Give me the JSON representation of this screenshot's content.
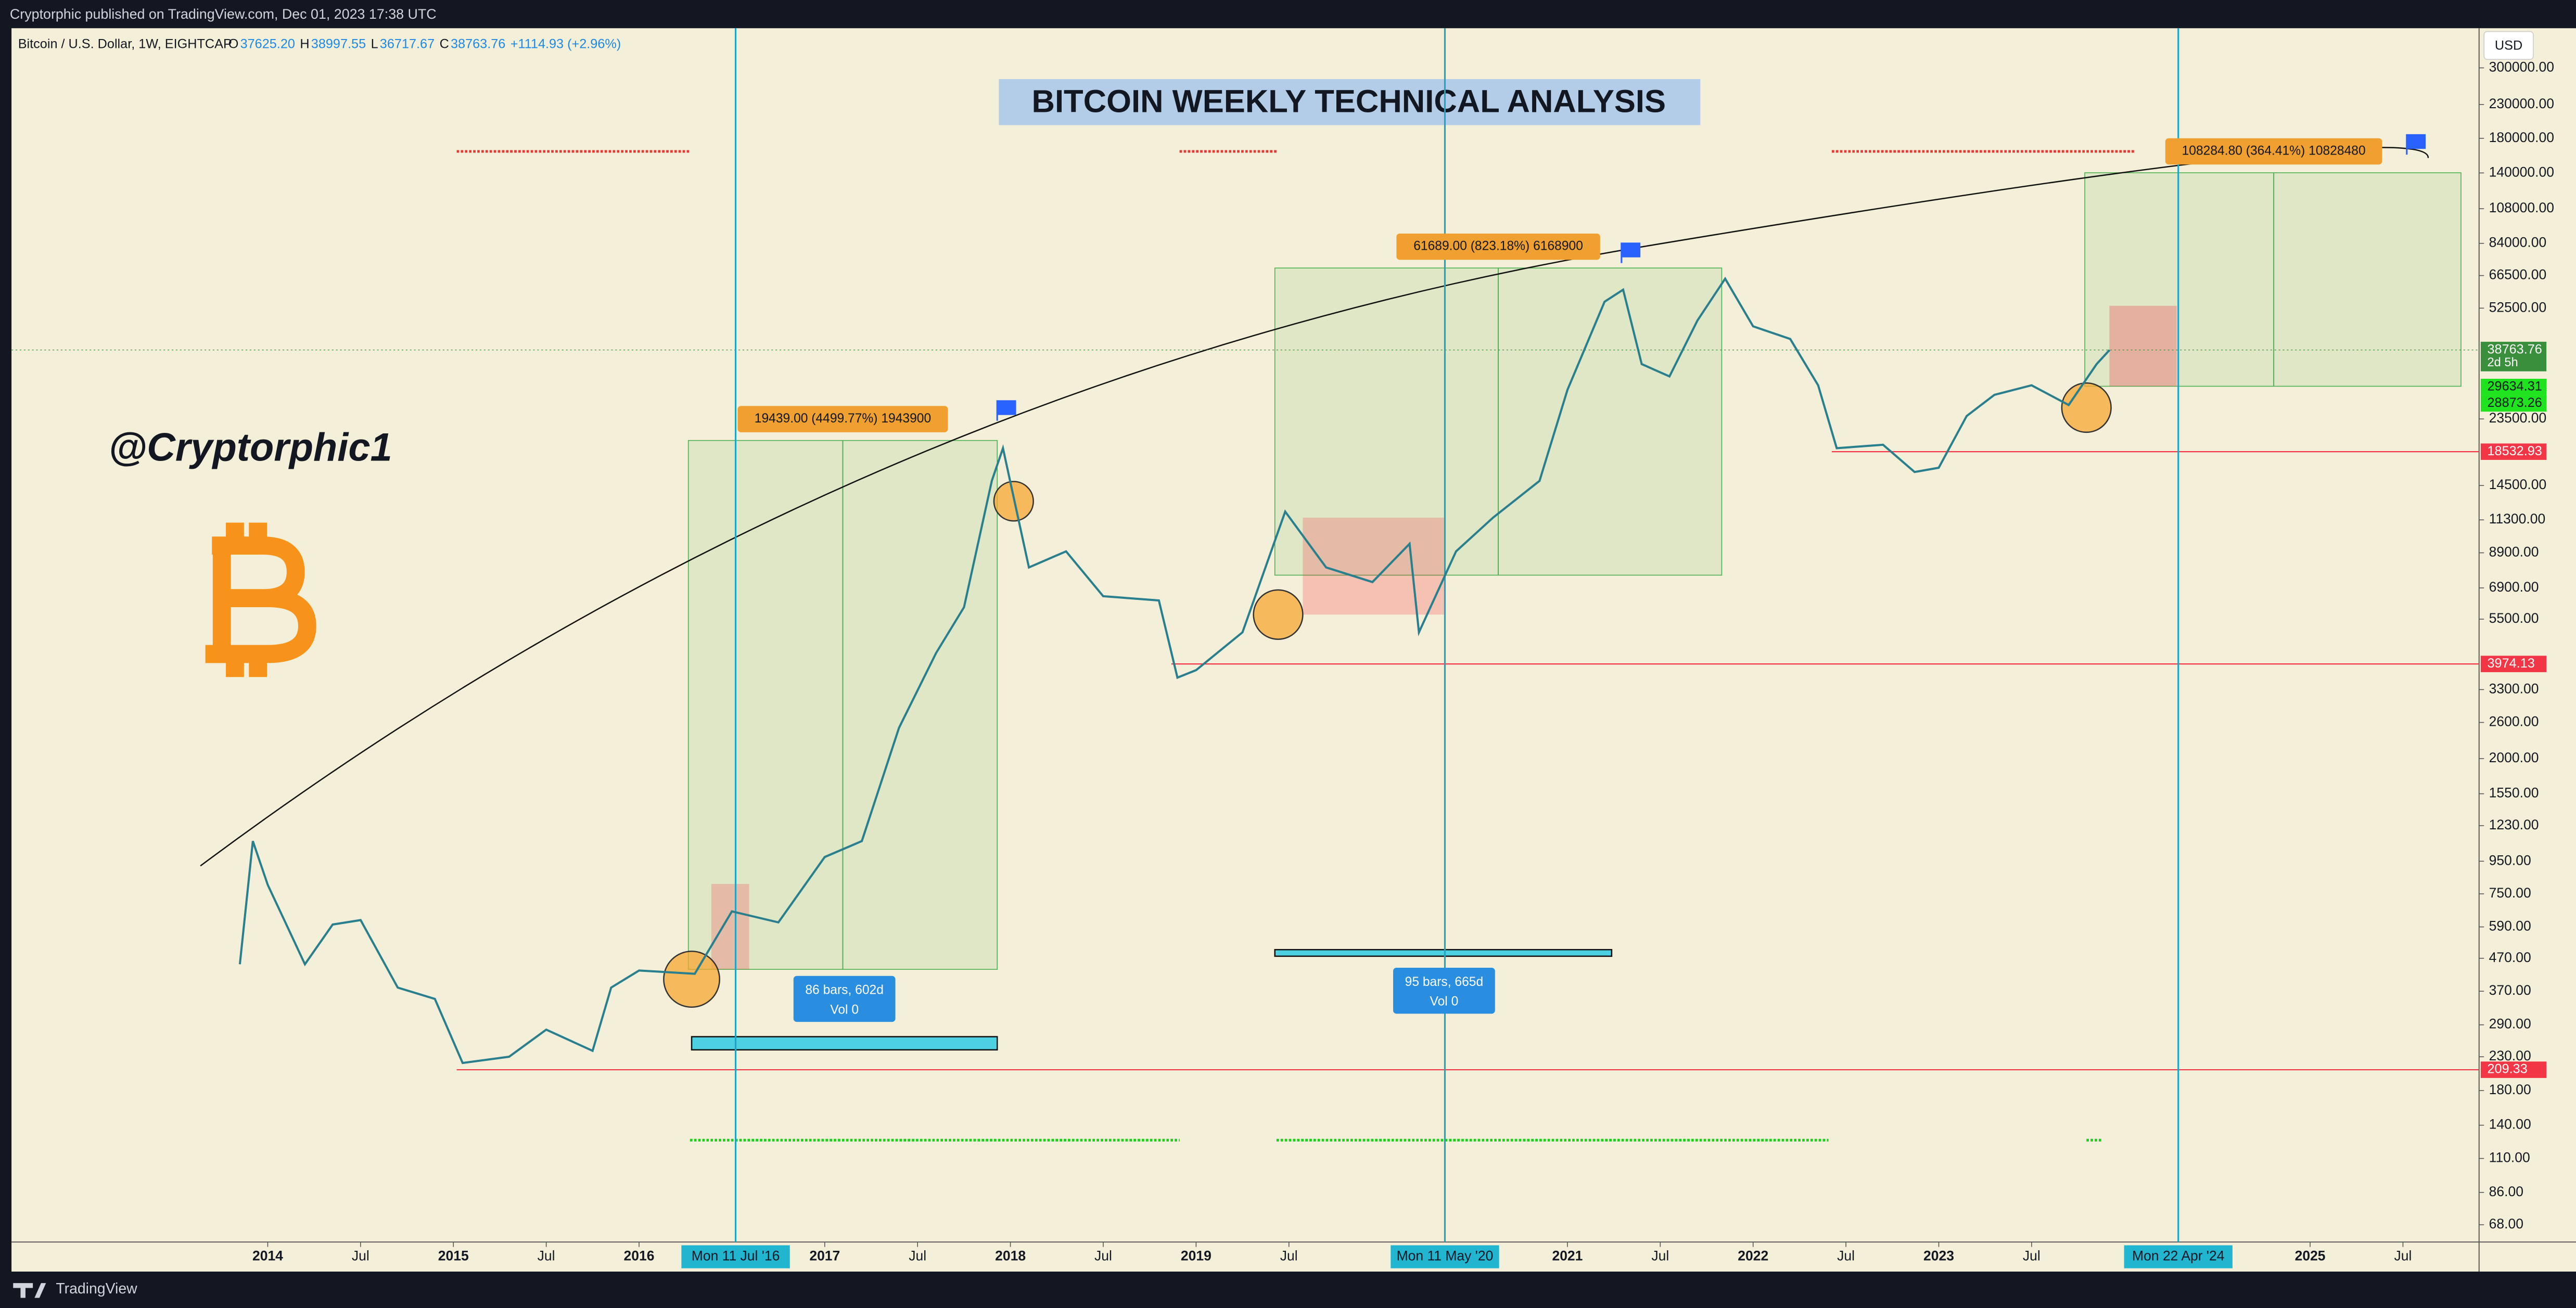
{
  "header": {
    "publisher": "Cryptorphic published on TradingView.com, Dec 01, 2023 17:38 UTC"
  },
  "footer": {
    "brand": "TradingView"
  },
  "chart_data": {
    "type": "line",
    "title": "BITCOIN WEEKLY TECHNICAL ANALYSIS",
    "symbol": "Bitcoin / U.S. Dollar, 1W, EIGHTCAP",
    "ohlc": [
      {
        "label": "O",
        "value": "37625.20"
      },
      {
        "label": "H",
        "value": "38997.55"
      },
      {
        "label": "L",
        "value": "36717.67"
      },
      {
        "label": "C",
        "value": "38763.76"
      }
    ],
    "change": "+1114.93 (+2.96%)",
    "currency": "USD",
    "watermark": "@Cryptorphic1",
    "log_scale": true,
    "color": "#2a7f8f",
    "x": [
      2013.85,
      2013.92,
      2014.0,
      2014.1,
      2014.2,
      2014.35,
      2014.5,
      2014.7,
      2014.9,
      2015.05,
      2015.3,
      2015.5,
      2015.75,
      2015.85,
      2016.0,
      2016.3,
      2016.5,
      2016.75,
      2017.0,
      2017.2,
      2017.4,
      2017.6,
      2017.75,
      2017.9,
      2017.96,
      2018.1,
      2018.3,
      2018.5,
      2018.8,
      2018.9,
      2019.0,
      2019.25,
      2019.48,
      2019.7,
      2019.95,
      2020.15,
      2020.2,
      2020.4,
      2020.6,
      2020.85,
      2021.0,
      2021.2,
      2021.3,
      2021.4,
      2021.55,
      2021.7,
      2021.85,
      2022.0,
      2022.2,
      2022.35,
      2022.45,
      2022.7,
      2022.87,
      2023.0,
      2023.15,
      2023.3,
      2023.5,
      2023.7,
      2023.85,
      2023.92
    ],
    "values": [
      450,
      1100,
      800,
      600,
      450,
      600,
      620,
      380,
      350,
      220,
      230,
      280,
      240,
      380,
      430,
      420,
      660,
      610,
      980,
      1100,
      2500,
      4300,
      6000,
      15000,
      19000,
      8000,
      9000,
      6500,
      6300,
      3600,
      3800,
      5000,
      12000,
      8000,
      7200,
      9500,
      5000,
      9000,
      11500,
      15000,
      29000,
      55000,
      60000,
      35000,
      32000,
      48000,
      65000,
      46000,
      42000,
      30000,
      19000,
      19500,
      16000,
      16500,
      24000,
      28000,
      30000,
      26000,
      35000,
      38763.76
    ],
    "xlim": [
      2012.62,
      2025.91
    ],
    "xticks": [
      2014,
      {
        "value": 2014.5,
        "label": "Jul"
      },
      2015,
      {
        "value": 2015.5,
        "label": "Jul"
      },
      2016,
      2017,
      {
        "value": 2017.5,
        "label": "Jul"
      },
      2018,
      {
        "value": 2018.5,
        "label": "Jul"
      },
      2019,
      {
        "value": 2019.5,
        "label": "Jul"
      },
      2021,
      {
        "value": 2021.5,
        "label": "Jul"
      },
      2022,
      {
        "value": 2022.5,
        "label": "Jul"
      },
      2023,
      {
        "value": 2023.5,
        "label": "Jul"
      },
      2025,
      {
        "value": 2025.5,
        "label": "Jul"
      }
    ],
    "ylim": [
      60,
      400000
    ],
    "yticks": [
      {
        "value": 300000,
        "label": "300000.00"
      },
      {
        "value": 230000,
        "label": "230000.00"
      },
      {
        "value": 180000,
        "label": "180000.00"
      },
      {
        "value": 140000,
        "label": "140000.00"
      },
      {
        "value": 108000,
        "label": "108000.00"
      },
      {
        "value": 84000,
        "label": "84000.00"
      },
      {
        "value": 66500,
        "label": "66500.00"
      },
      {
        "value": 52500,
        "label": "52500.00"
      },
      {
        "value": 23500,
        "label": "23500.00"
      },
      {
        "value": 14500,
        "label": "14500.00"
      },
      {
        "value": 11300,
        "label": "11300.00"
      },
      {
        "value": 8900,
        "label": "8900.00"
      },
      {
        "value": 6900,
        "label": "6900.00"
      },
      {
        "value": 5500,
        "label": "5500.00"
      },
      {
        "value": 3300,
        "label": "3300.00"
      },
      {
        "value": 2600,
        "label": "2600.00"
      },
      {
        "value": 2000,
        "label": "2000.00"
      },
      {
        "value": 1550,
        "label": "1550.00"
      },
      {
        "value": 1230,
        "label": "1230.00"
      },
      {
        "value": 950,
        "label": "950.00"
      },
      {
        "value": 750,
        "label": "750.00"
      },
      {
        "value": 590,
        "label": "590.00"
      },
      {
        "value": 470,
        "label": "470.00"
      },
      {
        "value": 370,
        "label": "370.00"
      },
      {
        "value": 290,
        "label": "290.00"
      },
      {
        "value": 230,
        "label": "230.00"
      },
      {
        "value": 180,
        "label": "180.00"
      },
      {
        "value": 140,
        "label": "140.00"
      },
      {
        "value": 110,
        "label": "110.00"
      },
      {
        "value": 86,
        "label": "86.00"
      },
      {
        "value": 68,
        "label": "68.00"
      }
    ],
    "markers": [
      {
        "value": 2016.52,
        "label": "Mon 11 Jul '16"
      },
      {
        "value": 2020.34,
        "label": "Mon 11 May '20"
      },
      {
        "value": 2024.29,
        "label": "Mon 22 Apr '24"
      }
    ],
    "price_tags": [
      {
        "value": 38763.76,
        "color": "#3a8f3c"
      },
      {
        "value": 29634.31,
        "color": "#1ee31e"
      },
      {
        "value": 28873.26,
        "color": "#1ee31e"
      },
      {
        "value": 18532.93,
        "color": "#f23645"
      },
      {
        "value": 3974.13,
        "color": "#f23645"
      },
      {
        "value": 209.33,
        "color": "#f23645"
      }
    ],
    "price_tag_note": "2d 5h",
    "annotations": [
      "19439.00 (4499.77%) 1943900",
      "61689.00 (823.18%) 6168900",
      "108284.80 (364.41%) 10828480"
    ],
    "ranges": [
      {
        "text": "86 bars, 602d",
        "volume": "Vol 0"
      },
      {
        "text": "95 bars, 665d",
        "volume": "Vol 0"
      }
    ]
  }
}
